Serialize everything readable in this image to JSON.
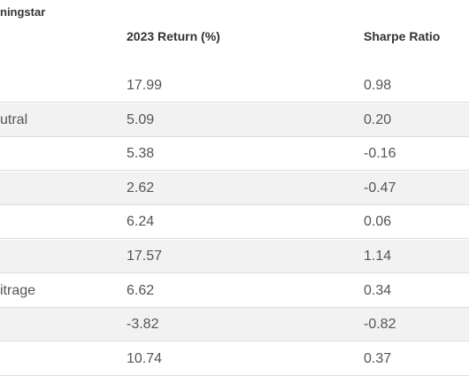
{
  "header": {
    "title": "ningstar",
    "columns": [
      "2023 Return (%)",
      "Sharpe Ratio"
    ]
  },
  "table": {
    "rows": [
      {
        "values": [
          "17.99",
          "0.98"
        ]
      },
      {
        "label": "utral",
        "values": [
          "5.09",
          "0.20"
        ]
      },
      {
        "values": [
          "5.38",
          "-0.16"
        ]
      },
      {
        "values": [
          "2.62",
          "-0.47"
        ]
      },
      {
        "values": [
          "6.24",
          "0.06"
        ]
      },
      {
        "values": [
          "17.57",
          "1.14"
        ]
      },
      {
        "label": "itrage",
        "values": [
          "6.62",
          "0.34"
        ]
      },
      {
        "values": [
          "-3.82",
          "-0.82"
        ]
      },
      {
        "values": [
          "10.74",
          "0.37"
        ]
      }
    ]
  }
}
